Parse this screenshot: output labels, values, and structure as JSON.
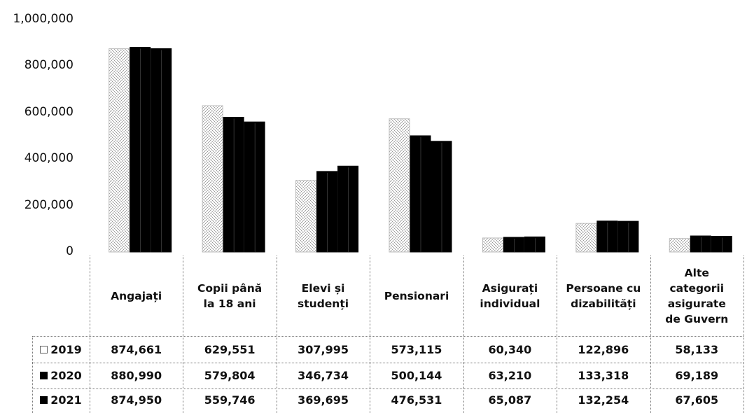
{
  "chart_data": {
    "type": "bar",
    "categories": [
      "Angajați",
      "Copii până la 18 ani",
      "Elevi și studenți",
      "Pensionari",
      "Asigurați individual",
      "Persoane cu dizabilități",
      "Alte categorii asigurate de Guvern"
    ],
    "category_lines": [
      [
        "Angajați"
      ],
      [
        "Copii până",
        "la 18 ani"
      ],
      [
        "Elevi și",
        "studenți"
      ],
      [
        "Pensionari"
      ],
      [
        "Asigurați",
        "individual"
      ],
      [
        "Persoane cu",
        "dizabilități"
      ],
      [
        "Alte",
        "categorii",
        "asigurate",
        "de Guvern"
      ]
    ],
    "series": [
      {
        "name": "2019",
        "values": [
          874661,
          629551,
          307995,
          573115,
          60340,
          122896,
          58133
        ],
        "labels": [
          "874,661",
          "629,551",
          "307,995",
          "573,115",
          "60,340",
          "122,896",
          "58,133"
        ],
        "fill": "#ffffff",
        "stroke": "#999999",
        "legend_symbol": "□"
      },
      {
        "name": "2020",
        "values": [
          880990,
          579804,
          346734,
          500144,
          63210,
          133318,
          69189
        ],
        "labels": [
          "880,990",
          "579,804",
          "346,734",
          "500,144",
          "63,210",
          "133,318",
          "69,189"
        ],
        "fill": "#000000",
        "stroke": "#000000",
        "legend_symbol": "■"
      },
      {
        "name": "2021",
        "values": [
          874950,
          559746,
          369695,
          476531,
          65087,
          132254,
          67605
        ],
        "labels": [
          "874,950",
          "559,746",
          "369,695",
          "476,531",
          "65,087",
          "132,254",
          "67,605"
        ],
        "fill": "#000000",
        "stroke": "#000000",
        "legend_symbol": "■"
      }
    ],
    "y_ticks": [
      "0",
      "200,000",
      "400,000",
      "600,000",
      "800,000",
      "1,000,000"
    ],
    "ylim": [
      0,
      1000000
    ],
    "title": "",
    "xlabel": "",
    "ylabel": "",
    "grid": false,
    "legend": "data-table-rows"
  }
}
